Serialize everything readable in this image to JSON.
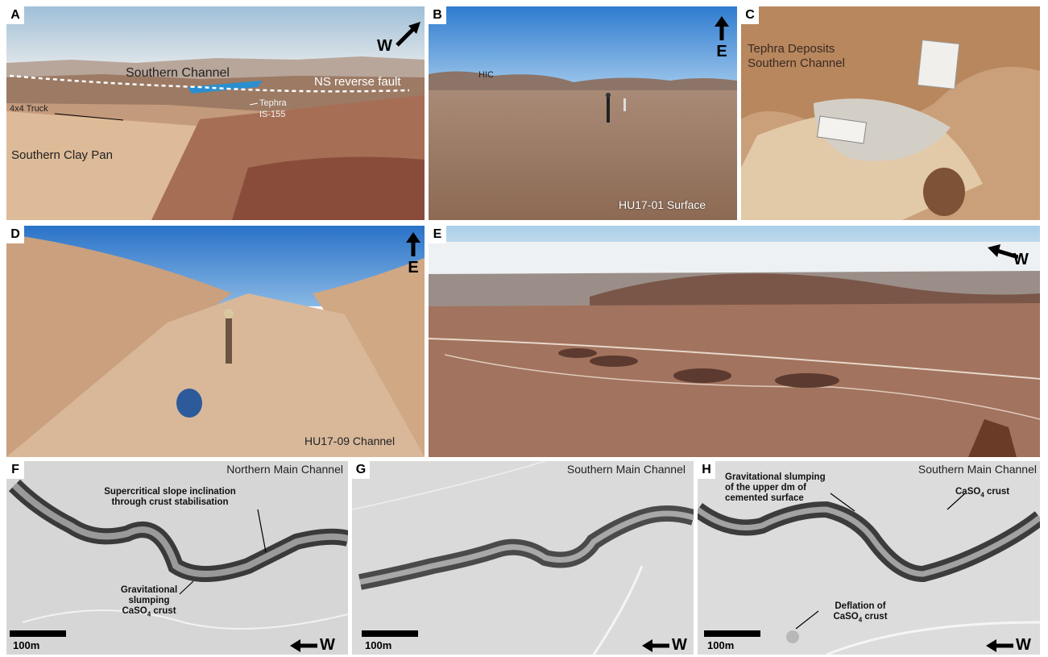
{
  "panels": {
    "a": {
      "letter": "A",
      "labels": {
        "southern_channel": "Southern Channel",
        "ns_reverse_fault": "NS reverse fault",
        "truck": "4x4 Truck",
        "tephra": "Tephra",
        "tephra_id": "IS-155",
        "clay_pan": "Southern Clay Pan"
      },
      "direction": "W"
    },
    "b": {
      "letter": "B",
      "hill_label": "HIC",
      "caption": "HU17-01 Surface",
      "direction": "E"
    },
    "c": {
      "letter": "C",
      "title_line1": "Tephra Deposits",
      "title_line2": "Southern Channel"
    },
    "d": {
      "letter": "D",
      "caption": "HU17-09 Channel",
      "direction": "E"
    },
    "e": {
      "letter": "E",
      "direction": "W"
    },
    "f": {
      "letter": "F",
      "region": "Northern Main Channel",
      "annot1": "Supercritical slope inclination through crust stabilisation",
      "annot2_line1": "Gravitational",
      "annot2_line2": "slumping",
      "annot2_line3": "CaSO",
      "annot2_sub": "4",
      "annot2_tail": " crust",
      "scale": "100m",
      "direction": "W"
    },
    "g": {
      "letter": "G",
      "region": "Southern Main Channel",
      "scale": "100m",
      "direction": "W"
    },
    "h": {
      "letter": "H",
      "region": "Southern Main Channel",
      "annot1_line1": "Gravitational slumping",
      "annot1_line2": "of the upper dm of",
      "annot1_line3": "cemented surface",
      "annot2_pre": "CaSO",
      "annot2_sub": "4",
      "annot2_tail": " crust",
      "annot3_line1": "Deflation of",
      "annot3_pre": "CaSO",
      "annot3_sub": "4",
      "annot3_tail": " crust",
      "scale": "100m",
      "direction": "W"
    }
  }
}
